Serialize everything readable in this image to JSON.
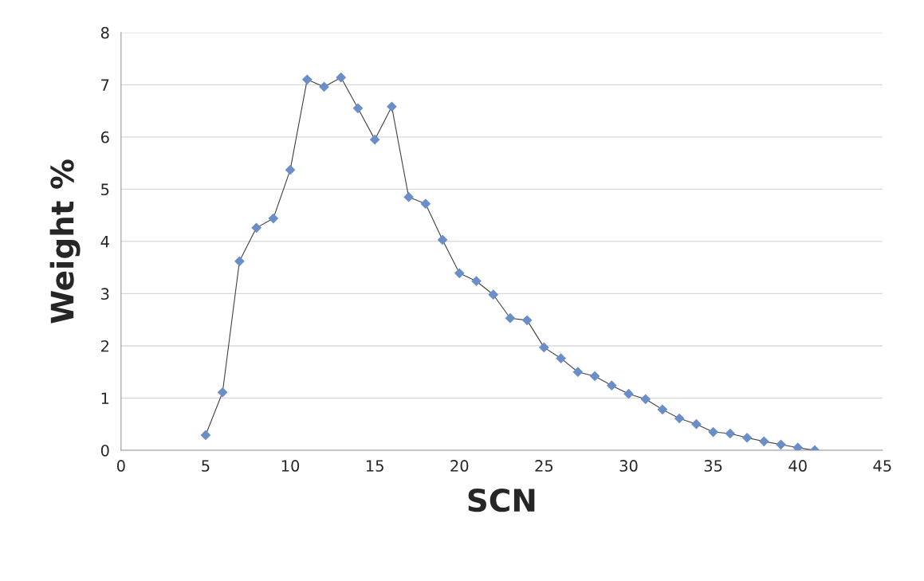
{
  "chart_data": {
    "type": "line",
    "xlabel": "SCN",
    "ylabel": "Weight %",
    "x": [
      5,
      6,
      7,
      8,
      9,
      10,
      11,
      12,
      13,
      14,
      15,
      16,
      17,
      18,
      19,
      20,
      21,
      22,
      23,
      24,
      25,
      26,
      27,
      28,
      29,
      30,
      31,
      32,
      33,
      34,
      35,
      36,
      37,
      38,
      39,
      40,
      41
    ],
    "series": [
      {
        "color": "#6a8fc8",
        "values": [
          0.29,
          1.11,
          3.62,
          4.26,
          4.44,
          5.37,
          7.1,
          6.96,
          7.14,
          6.55,
          5.95,
          6.58,
          4.85,
          4.72,
          4.03,
          3.39,
          3.24,
          2.98,
          2.53,
          2.49,
          1.97,
          1.76,
          1.5,
          1.42,
          1.24,
          1.08,
          0.98,
          0.78,
          0.61,
          0.5,
          0.35,
          0.32,
          0.24,
          0.17,
          0.11,
          0.05,
          0.0
        ]
      }
    ],
    "xlim": [
      0,
      45
    ],
    "xticks": [
      0,
      5,
      10,
      15,
      20,
      25,
      30,
      35,
      40,
      45
    ],
    "ylim": [
      0,
      8
    ],
    "yticks": [
      0,
      1,
      2,
      3,
      4,
      5,
      6,
      7,
      8
    ],
    "grid": "y",
    "marker": "diamond",
    "line_style": "solid"
  }
}
